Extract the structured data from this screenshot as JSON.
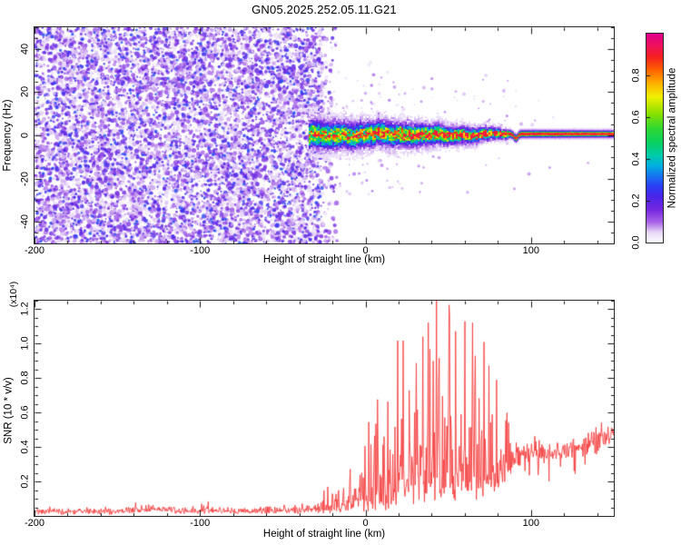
{
  "title": "GN05.2025.252.05.11.G21",
  "palette": {
    "trace_red": "#f54040",
    "frame": "#2a2a2a",
    "background": "#ffffff"
  },
  "colormap_stops": [
    [
      0.0,
      "#ffffff"
    ],
    [
      0.05,
      "#e8d9f7"
    ],
    [
      0.1,
      "#a863e8"
    ],
    [
      0.16,
      "#7428e0"
    ],
    [
      0.22,
      "#4b24e8"
    ],
    [
      0.27,
      "#2b3cf5"
    ],
    [
      0.32,
      "#1773f0"
    ],
    [
      0.37,
      "#00b0e0"
    ],
    [
      0.42,
      "#00ccac"
    ],
    [
      0.48,
      "#0ad060"
    ],
    [
      0.55,
      "#30d830"
    ],
    [
      0.62,
      "#8ce000"
    ],
    [
      0.7,
      "#f0f000"
    ],
    [
      0.76,
      "#ffb400"
    ],
    [
      0.83,
      "#ff6000"
    ],
    [
      0.89,
      "#f52020"
    ],
    [
      0.95,
      "#ee1060"
    ],
    [
      1.0,
      "#e0008c"
    ]
  ],
  "chart_data": [
    {
      "type": "heatmap",
      "name": "doppler-spectrogram",
      "xlabel": "Height of straight line (km)",
      "ylabel": "Frequency (Hz)",
      "xlim": [
        -200,
        150
      ],
      "ylim": [
        -50,
        50
      ],
      "xtick_values": [
        -200,
        -100,
        0,
        100
      ],
      "xtick_labels": [
        "-200",
        "-100",
        "0",
        "100"
      ],
      "xtick_minor_step": 20,
      "ytick_values": [
        -40,
        -20,
        0,
        20,
        40
      ],
      "ytick_labels": [
        "-40",
        "-20",
        "0",
        "20",
        "40"
      ],
      "ytick_minor_step": 5,
      "colorbar": {
        "label": "Normalized spectral amplitude",
        "tick_values": [
          0,
          0.2,
          0.4,
          0.6,
          0.8
        ],
        "tick_labels": [
          "0.0",
          "0.2",
          "0.4",
          "0.6",
          "0.8"
        ],
        "range": [
          0,
          1
        ]
      },
      "features": {
        "noise_field": {
          "x_range": [
            -200,
            -26
          ],
          "freq_range": [
            -50,
            50
          ],
          "amplitude_range": [
            0.03,
            0.3
          ],
          "description": "speckled low-amplitude purple noise filling full band"
        },
        "signal_band": {
          "x_range": [
            -34,
            150
          ],
          "center_freq_hz": 0.8,
          "amplitude_profile": [
            [
              -34,
              0.62
            ],
            [
              0,
              0.72
            ],
            [
              30,
              0.82
            ],
            [
              60,
              0.9
            ],
            [
              80,
              0.94
            ],
            [
              150,
              0.94
            ]
          ],
          "sigma_hz_profile": [
            [
              -34,
              3.0
            ],
            [
              0,
              2.5
            ],
            [
              30,
              2.1
            ],
            [
              60,
              1.5
            ],
            [
              80,
              0.95
            ],
            [
              88,
              0.68
            ],
            [
              150,
              0.62
            ]
          ],
          "description": "narrowing signal ridge near 0 Hz, amplitude rising to saturated carrier line"
        },
        "carrier_dip": {
          "x_km": 90.5,
          "depth_hz": -1.9
        }
      }
    },
    {
      "type": "line",
      "name": "snr-profile",
      "xlabel": "Height of straight line (km)",
      "ylabel": "SNR (10 * v/v)",
      "scale_label": "(x10⁴)",
      "xlim": [
        -200,
        150
      ],
      "ylim": [
        0,
        1.25
      ],
      "xtick_values": [
        -200,
        -100,
        0,
        100
      ],
      "xtick_labels": [
        "-200",
        "-100",
        "0",
        "100"
      ],
      "xtick_minor_step": 20,
      "ytick_values": [
        0.2,
        0.4,
        0.6,
        0.8,
        1.0,
        1.2
      ],
      "ytick_labels": [
        "0.2",
        "0.4",
        "0.6",
        "0.8",
        "1.0",
        "1.2"
      ],
      "ytick_minor_step": 0.05,
      "line_color": "#f54040",
      "sample_step_km": 0.33,
      "envelope_points": [
        [
          -200,
          0.025,
          0.035,
          0.018,
          0.012,
          0
        ],
        [
          -150,
          0.025,
          0.035,
          0.018,
          0.012,
          0
        ],
        [
          -135,
          0.035,
          0.05,
          0.02,
          0.02,
          0
        ],
        [
          -120,
          0.035,
          0.05,
          0.02,
          0.02,
          0
        ],
        [
          -108,
          0.028,
          0.035,
          0.018,
          0.015,
          0
        ],
        [
          -95,
          0.028,
          0.04,
          0.018,
          0.06,
          0
        ],
        [
          -80,
          0.025,
          0.035,
          0.015,
          0.02,
          0
        ],
        [
          -60,
          0.028,
          0.04,
          0.018,
          0.02,
          0
        ],
        [
          -42,
          0.03,
          0.045,
          0.02,
          0.03,
          0
        ],
        [
          -28,
          0.035,
          0.06,
          0.022,
          0.09,
          0
        ],
        [
          -15,
          0.045,
          0.1,
          0.03,
          0.2,
          0
        ],
        [
          -5,
          0.055,
          0.16,
          0.035,
          0.33,
          0
        ],
        [
          5,
          0.07,
          0.22,
          0.045,
          0.55,
          0
        ],
        [
          15,
          0.1,
          0.34,
          0.07,
          0.85,
          0
        ],
        [
          25,
          0.16,
          0.46,
          0.1,
          1.02,
          0
        ],
        [
          35,
          0.18,
          0.5,
          0.12,
          1.06,
          0
        ],
        [
          45,
          0.19,
          0.5,
          0.12,
          1.02,
          0
        ],
        [
          55,
          0.19,
          0.48,
          0.12,
          1.0,
          0
        ],
        [
          65,
          0.18,
          0.44,
          0.12,
          0.98,
          0
        ],
        [
          72,
          0.2,
          0.38,
          0.13,
          0.9,
          0
        ],
        [
          80,
          0.24,
          0.28,
          0.12,
          0.6,
          0.05
        ],
        [
          88,
          0.32,
          0.14,
          0.08,
          0.25,
          0.12
        ],
        [
          95,
          0.36,
          0.1,
          0.06,
          0.08,
          0.16
        ],
        [
          105,
          0.37,
          0.09,
          0.06,
          0.06,
          0.14
        ],
        [
          118,
          0.37,
          0.1,
          0.06,
          0.07,
          0.12
        ],
        [
          130,
          0.4,
          0.1,
          0.06,
          0.08,
          0.12
        ],
        [
          140,
          0.43,
          0.11,
          0.06,
          0.08,
          0.1
        ],
        [
          150,
          0.46,
          0.11,
          0.06,
          0.06,
          0.08
        ]
      ]
    }
  ]
}
